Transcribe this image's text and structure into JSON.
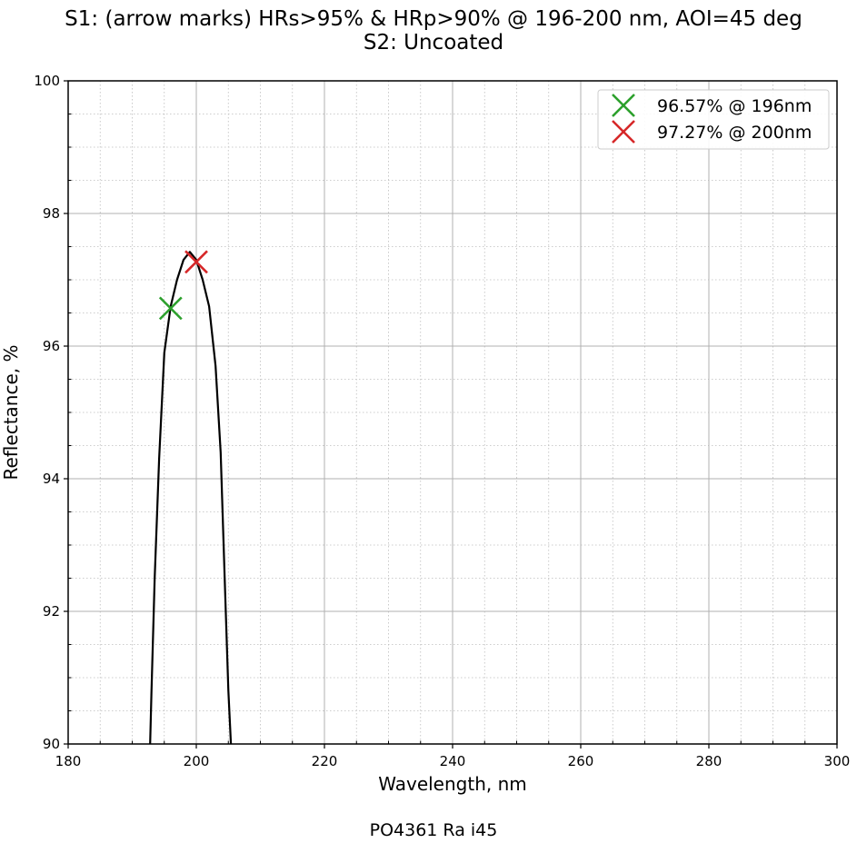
{
  "chart_data": {
    "type": "line",
    "title_line1": "S1: (arrow marks) HRs>95% & HRp>90% @ 196-200 nm, AOI=45 deg",
    "title_line2": "S2: Uncoated",
    "xlabel": "Wavelength, nm",
    "ylabel": "Reflectance, %",
    "footer": "PO4361 Ra i45",
    "xlim": [
      180,
      300
    ],
    "ylim": [
      90,
      100
    ],
    "xticks": [
      180,
      200,
      220,
      240,
      260,
      280,
      300
    ],
    "yticks": [
      90,
      92,
      94,
      96,
      98,
      100
    ],
    "x_minor_step": 5,
    "y_minor_step": 0.5,
    "grid": true,
    "legend_position": "top-right",
    "series": [
      {
        "color": "#000000",
        "x": [
          192.8,
          193.0,
          193.5,
          194.2,
          195.0,
          196.0,
          197.0,
          198.0,
          199.0,
          200.0,
          201.0,
          202.0,
          203.0,
          203.8,
          204.5,
          205.0,
          205.4
        ],
        "y": [
          90.0,
          90.8,
          92.5,
          94.3,
          95.9,
          96.6,
          97.0,
          97.3,
          97.42,
          97.3,
          97.0,
          96.6,
          95.7,
          94.4,
          92.3,
          90.8,
          90.0
        ]
      }
    ],
    "markers": [
      {
        "x": 196,
        "y": 96.57,
        "color": "#2ca02c",
        "label": "96.57% @ 196nm"
      },
      {
        "x": 200,
        "y": 97.27,
        "color": "#d62728",
        "label": "97.27% @ 200nm"
      }
    ]
  }
}
